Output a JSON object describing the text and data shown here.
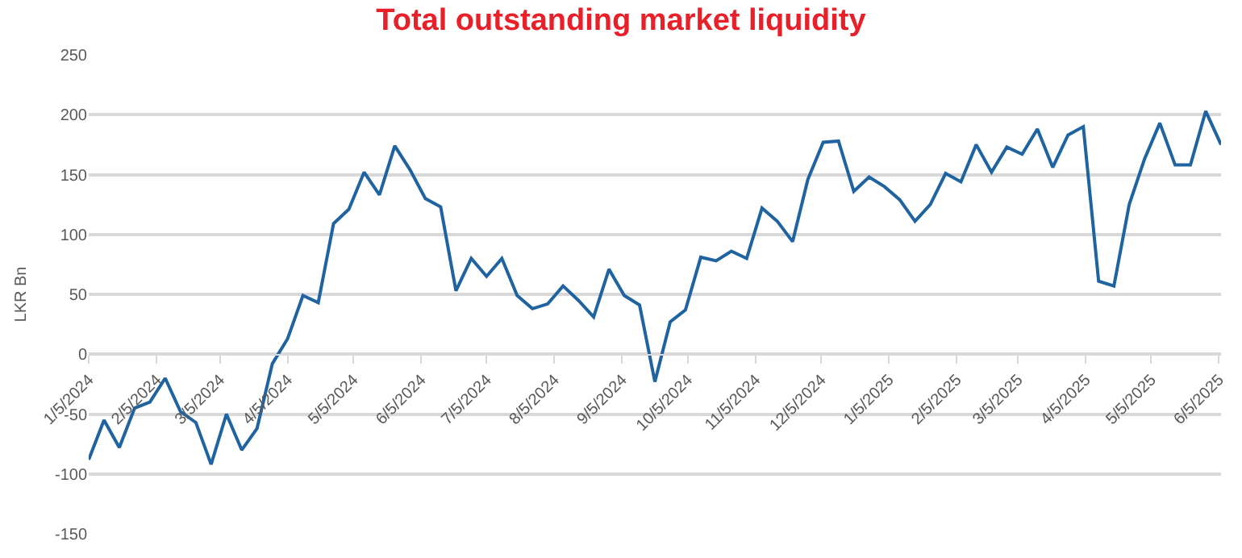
{
  "chart_data": {
    "type": "line",
    "title": "Total outstanding market liquidity",
    "ylabel": "LKR Bn",
    "x": [
      "2024-01-05",
      "2024-01-12",
      "2024-01-19",
      "2024-01-26",
      "2024-02-02",
      "2024-02-09",
      "2024-02-16",
      "2024-02-23",
      "2024-03-01",
      "2024-03-08",
      "2024-03-15",
      "2024-03-22",
      "2024-03-29",
      "2024-04-05",
      "2024-04-12",
      "2024-04-19",
      "2024-04-26",
      "2024-05-03",
      "2024-05-10",
      "2024-05-17",
      "2024-05-24",
      "2024-05-31",
      "2024-06-07",
      "2024-06-14",
      "2024-06-21",
      "2024-06-28",
      "2024-07-05",
      "2024-07-12",
      "2024-07-19",
      "2024-07-26",
      "2024-08-02",
      "2024-08-09",
      "2024-08-16",
      "2024-08-23",
      "2024-08-30",
      "2024-09-06",
      "2024-09-13",
      "2024-09-20",
      "2024-09-27",
      "2024-10-04",
      "2024-10-11",
      "2024-10-18",
      "2024-10-25",
      "2024-11-01",
      "2024-11-08",
      "2024-11-15",
      "2024-11-22",
      "2024-11-29",
      "2024-12-06",
      "2024-12-13",
      "2024-12-20",
      "2024-12-27",
      "2025-01-03",
      "2025-01-10",
      "2025-01-17",
      "2025-01-24",
      "2025-01-31",
      "2025-02-07",
      "2025-02-14",
      "2025-02-21",
      "2025-02-28",
      "2025-03-07",
      "2025-03-14",
      "2025-03-21",
      "2025-03-28",
      "2025-04-04",
      "2025-04-11",
      "2025-04-18",
      "2025-04-25",
      "2025-05-02",
      "2025-05-09",
      "2025-05-16",
      "2025-05-23",
      "2025-05-30",
      "2025-06-06"
    ],
    "series": [
      {
        "color": "#1f64a0",
        "values": [
          -88,
          -55,
          -78,
          -45,
          -40,
          -20,
          -48,
          -57,
          -92,
          -50,
          -80,
          -62,
          -8,
          13,
          49,
          43,
          109,
          121,
          152,
          133,
          174,
          154,
          130,
          123,
          53,
          80,
          65,
          80,
          49,
          38,
          42,
          57,
          45,
          31,
          71,
          49,
          41,
          -23,
          27,
          37,
          81,
          78,
          86,
          80,
          122,
          111,
          94,
          146,
          177,
          178,
          136,
          148,
          140,
          129,
          111,
          125,
          151,
          144,
          175,
          152,
          173,
          167,
          188,
          156,
          183,
          190,
          61,
          57,
          125,
          163,
          193,
          158,
          158,
          203,
          175
        ]
      }
    ],
    "xlim": [
      "2024-01-05",
      "2025-06-06"
    ],
    "xticks": [
      {
        "value": "2024-01-05",
        "label": "1/5/2024"
      },
      {
        "value": "2024-02-05",
        "label": "2/5/2024"
      },
      {
        "value": "2024-03-05",
        "label": "3/5/2024"
      },
      {
        "value": "2024-04-05",
        "label": "4/5/2024"
      },
      {
        "value": "2024-05-05",
        "label": "5/5/2024"
      },
      {
        "value": "2024-06-05",
        "label": "6/5/2024"
      },
      {
        "value": "2024-07-05",
        "label": "7/5/2024"
      },
      {
        "value": "2024-08-05",
        "label": "8/5/2024"
      },
      {
        "value": "2024-09-05",
        "label": "9/5/2024"
      },
      {
        "value": "2024-10-05",
        "label": "10/5/2024"
      },
      {
        "value": "2024-11-05",
        "label": "11/5/2024"
      },
      {
        "value": "2024-12-05",
        "label": "12/5/2024"
      },
      {
        "value": "2025-01-05",
        "label": "1/5/2025"
      },
      {
        "value": "2025-02-05",
        "label": "2/5/2025"
      },
      {
        "value": "2025-03-05",
        "label": "3/5/2025"
      },
      {
        "value": "2025-04-05",
        "label": "4/5/2025"
      },
      {
        "value": "2025-05-05",
        "label": "5/5/2025"
      },
      {
        "value": "2025-06-05",
        "label": "6/5/2025"
      }
    ],
    "ylim": [
      -150,
      250
    ],
    "yticks": [
      -150,
      -100,
      -50,
      0,
      50,
      100,
      150,
      200,
      250
    ],
    "grid": "y",
    "legend": false,
    "marker": "none",
    "line_style": "solid"
  }
}
